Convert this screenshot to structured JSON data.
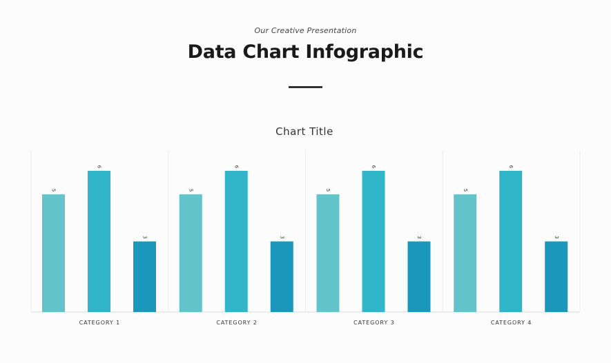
{
  "header": {
    "subtitle": "Our Creative Presentation",
    "title": "Data Chart Infographic"
  },
  "chart_data": {
    "type": "bar",
    "title": "Chart Title",
    "categories": [
      "CATEGORY 1",
      "CATEGORY 2",
      "CATEGORY 3",
      "CATEGORY 4"
    ],
    "series": [
      {
        "values": [
          5,
          5,
          5,
          5
        ]
      },
      {
        "values": [
          6,
          6,
          6,
          6
        ]
      },
      {
        "values": [
          3,
          3,
          3,
          3
        ]
      }
    ],
    "series_colors": [
      "#62c3cb",
      "#31b5c9",
      "#1a97bb"
    ],
    "ylim": [
      0,
      6
    ],
    "data_labels": true,
    "legend": false,
    "grid": false,
    "xlabel": "",
    "ylabel": ""
  }
}
